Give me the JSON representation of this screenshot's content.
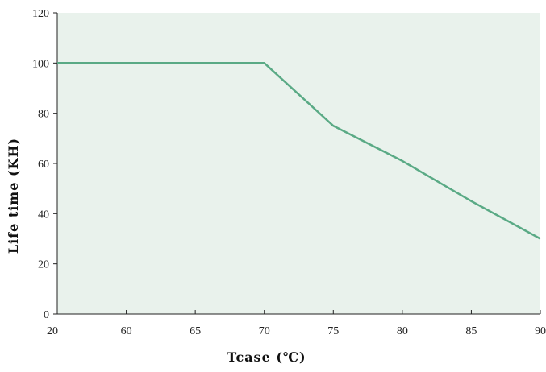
{
  "chart_data": {
    "type": "line",
    "title": "",
    "xlabel": "Tcase (℃)",
    "ylabel": "Life time (KH)",
    "x": [
      20,
      60,
      65,
      70,
      75,
      80,
      85,
      90
    ],
    "x_tick_labels": [
      "20",
      "60",
      "65",
      "70",
      "75",
      "80",
      "85",
      "90"
    ],
    "ylim": [
      0,
      120
    ],
    "y_ticks": [
      0,
      20,
      40,
      60,
      80,
      100,
      120
    ],
    "y_tick_labels": [
      "0",
      "20",
      "40",
      "60",
      "80",
      "100",
      "120"
    ],
    "series": [
      {
        "values": [
          100,
          100,
          100,
          100,
          75,
          61,
          45,
          30
        ]
      }
    ],
    "grid": false,
    "legend": "none",
    "colors": {
      "plot_background": "#e9f2ec",
      "line": "#5aaa85",
      "axis": "#222222"
    }
  }
}
